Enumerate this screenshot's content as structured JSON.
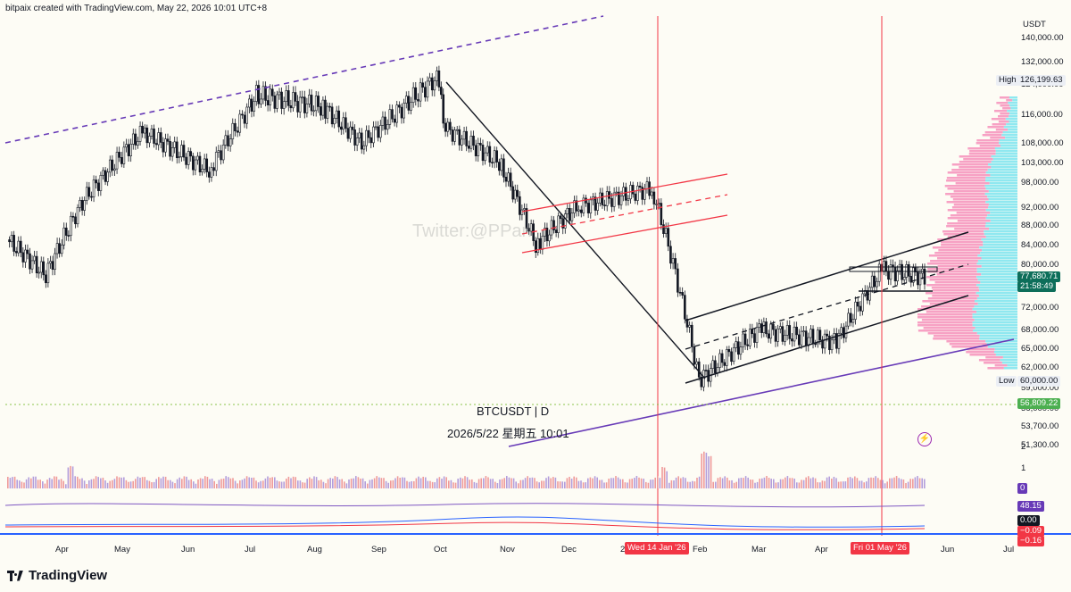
{
  "credit": "bitpaix created with TradingView.com, May 22, 2026 10:01 UTC+8",
  "watermark": "Twitter:@PPan",
  "symbol_label": "BTCUSDT | D",
  "datetime_label": "2026/5/22 星期五 10:01",
  "brand": "TradingView",
  "currency": "USDT",
  "price_axis": [
    "140,000.00",
    "132,000.00",
    "124,000.00",
    "116,000.00",
    "108,000.00",
    "103,000.00",
    "98,000.00",
    "92,000.00",
    "88,000.00",
    "84,000.00",
    "80,000.00",
    "72,000.00",
    "68,000.00",
    "65,000.00",
    "62,000.00",
    "59,000.00",
    "56,000.00",
    "53,700.00",
    "51,300.00"
  ],
  "time_axis": [
    "Apr",
    "May",
    "Jun",
    "Jul",
    "Aug",
    "Sep",
    "Oct",
    "Nov",
    "Dec",
    "2",
    "Feb",
    "Mar",
    "Apr",
    "May",
    "Jun",
    "Jul"
  ],
  "tags": {
    "high_label": "High",
    "high_value": "126,199.63",
    "low_label": "Low",
    "low_value": "60,000.00",
    "last_price": "77,680.71",
    "countdown": "21:58:49",
    "level_green": "56,809.22",
    "date_left": "Wed 14 Jan '26",
    "date_right": "Fri 01 May '26",
    "vol_axis": [
      "2",
      "1"
    ],
    "vol_tag": "0",
    "ind1_tag": "48.15",
    "ind2_tag": "0.00",
    "ind2_neg": "−0.09",
    "ind2_neg2": "−0.16"
  },
  "colors": {
    "bull": "#131722",
    "bear": "#131722",
    "channel_red": "#f23645",
    "trend_purple": "#673ab7",
    "vline": "#f23645",
    "vp_pink": "#f7a1c4",
    "vp_cyan": "#8fe8f0",
    "last_tag": "#0d6e5a",
    "green_tag": "#4caf50"
  },
  "chart_data": {
    "type": "candlestick",
    "symbol": "BTCUSDT",
    "interval": "D",
    "ylim": [
      50000,
      142000
    ],
    "high": 126199.63,
    "low": 60000,
    "last": 77680.71,
    "series": [
      {
        "date": "2025-03-20",
        "close": 85000
      },
      {
        "date": "2025-04-07",
        "close": 78000
      },
      {
        "date": "2025-04-25",
        "close": 94000
      },
      {
        "date": "2025-05-22",
        "close": 111000
      },
      {
        "date": "2025-06-22",
        "close": 101000
      },
      {
        "date": "2025-07-14",
        "close": 121000
      },
      {
        "date": "2025-08-14",
        "close": 118000
      },
      {
        "date": "2025-09-01",
        "close": 108000
      },
      {
        "date": "2025-10-06",
        "close": 126000
      },
      {
        "date": "2025-10-10",
        "close": 112000
      },
      {
        "date": "2025-11-04",
        "close": 103000
      },
      {
        "date": "2025-11-21",
        "close": 84000
      },
      {
        "date": "2025-12-10",
        "close": 92000
      },
      {
        "date": "2026-01-14",
        "close": 96500
      },
      {
        "date": "2026-02-05",
        "close": 60000
      },
      {
        "date": "2026-03-05",
        "close": 68000
      },
      {
        "date": "2026-04-10",
        "close": 66000
      },
      {
        "date": "2026-05-01",
        "close": 79000
      },
      {
        "date": "2026-05-21",
        "close": 77680.71
      }
    ]
  }
}
